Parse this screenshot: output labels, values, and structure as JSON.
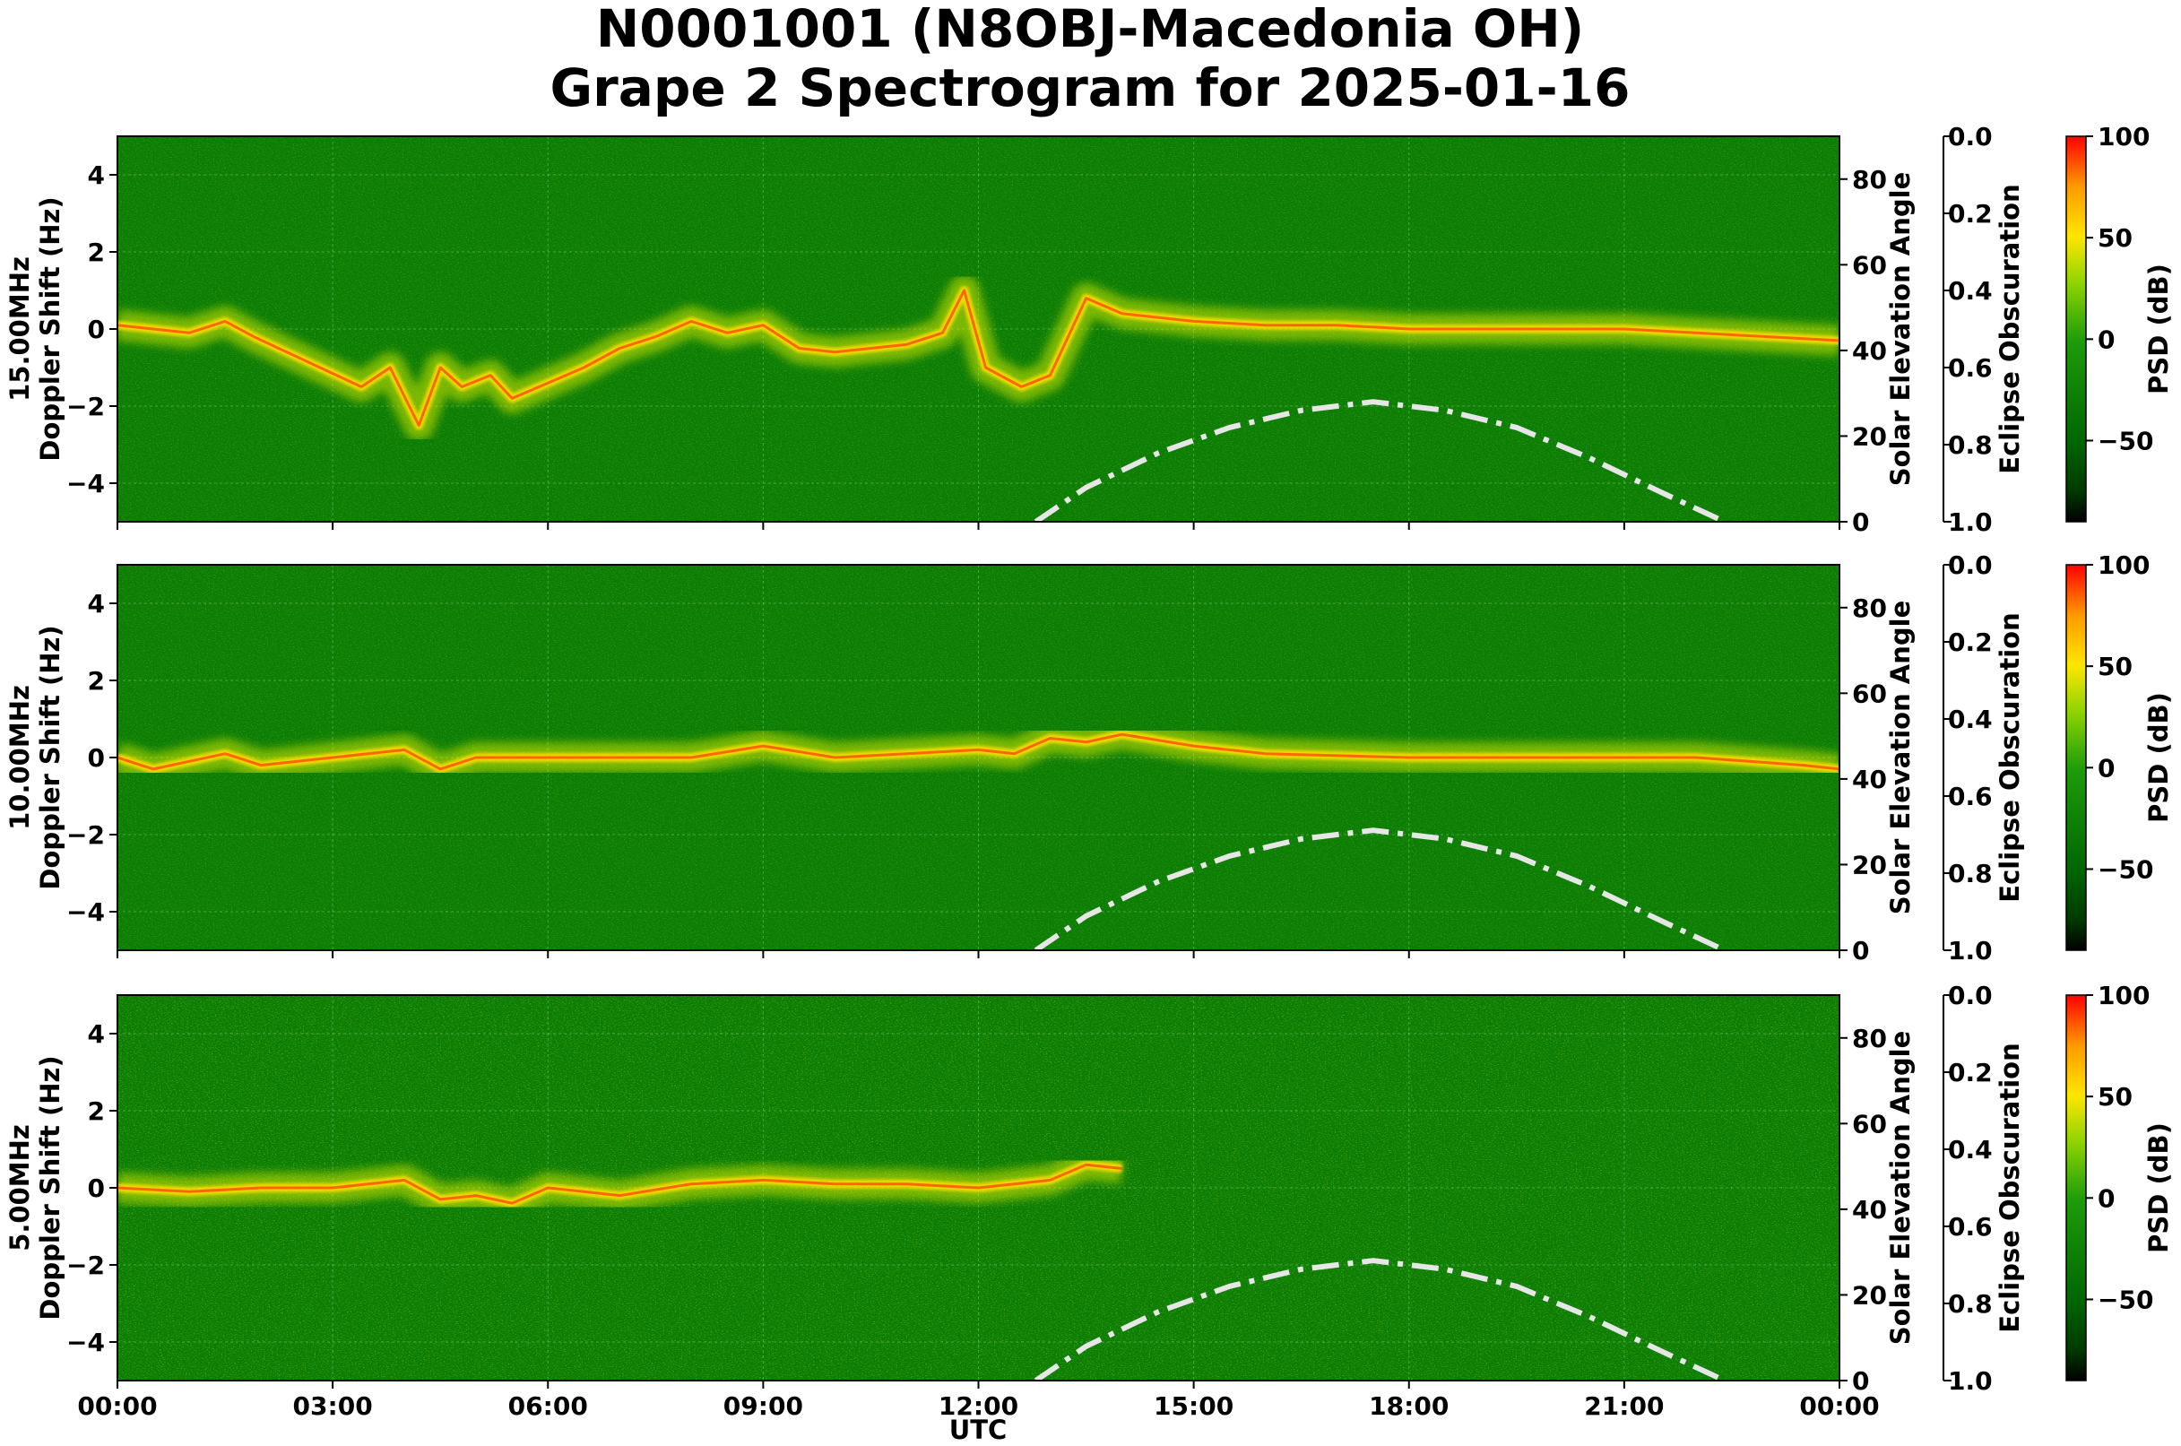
{
  "title_line1": "N0001001 (N8OBJ-Macedonia OH)",
  "title_line2": "Grape 2 Spectrogram for 2025-01-16",
  "colors": {
    "spectrogram_background": "#0b7d05",
    "sun_curve": "#e6e6e6",
    "colorbar_stops": [
      "#000000",
      "#006400",
      "#1e9c0a",
      "#c8f000",
      "#ffe600",
      "#ff8000",
      "#ff0000"
    ]
  },
  "chart_data": {
    "type": "heatmap",
    "x_axis": {
      "label": "UTC",
      "range_hours": [
        0,
        24
      ],
      "tick_labels": [
        "00:00",
        "03:00",
        "06:00",
        "09:00",
        "12:00",
        "15:00",
        "18:00",
        "21:00",
        "00:00"
      ]
    },
    "panels": [
      {
        "frequency_label": "15.00MHz",
        "ylabel_line2": "Doppler Shift (Hz)",
        "ylim": [
          -5,
          5
        ],
        "yticks": [
          "4",
          "2",
          "0",
          "−2",
          "−4"
        ],
        "carrier_trace": {
          "x_hours": [
            0.0,
            0.5,
            1.0,
            1.5,
            1.9,
            3.4,
            3.8,
            4.2,
            4.5,
            4.8,
            5.2,
            5.5,
            6.5,
            7.0,
            7.5,
            8.0,
            8.5,
            9.0,
            9.5,
            10.0,
            10.5,
            11.0,
            11.5,
            11.8,
            12.1,
            12.6,
            13.0,
            13.5,
            14.0,
            14.5,
            15.0,
            16.0,
            17.0,
            18.0,
            19.0,
            20.0,
            21.0,
            22.0,
            23.0,
            24.0
          ],
          "doppler_hz": [
            0.1,
            0.0,
            -0.1,
            0.2,
            -0.2,
            -1.5,
            -1.0,
            -2.5,
            -1.0,
            -1.5,
            -1.2,
            -1.8,
            -1.0,
            -0.5,
            -0.2,
            0.2,
            -0.1,
            0.1,
            -0.5,
            -0.6,
            -0.5,
            -0.4,
            -0.1,
            1.0,
            -1.0,
            -1.5,
            -1.2,
            0.8,
            0.4,
            0.3,
            0.2,
            0.1,
            0.1,
            0.0,
            0.0,
            0.0,
            0.0,
            -0.1,
            -0.2,
            -0.3
          ]
        }
      },
      {
        "frequency_label": "10.00MHz",
        "ylabel_line2": "Doppler Shift (Hz)",
        "ylim": [
          -5,
          5
        ],
        "yticks": [
          "4",
          "2",
          "0",
          "−2",
          "−4"
        ],
        "carrier_trace": {
          "x_hours": [
            0.0,
            0.5,
            1.0,
            1.5,
            2.0,
            3.0,
            4.0,
            4.5,
            5.0,
            6.0,
            7.0,
            8.0,
            9.0,
            10.0,
            11.0,
            12.0,
            12.5,
            13.0,
            13.5,
            14.0,
            15.0,
            16.0,
            18.0,
            20.0,
            22.0,
            23.5,
            24.0
          ],
          "doppler_hz": [
            0.0,
            -0.3,
            -0.1,
            0.1,
            -0.2,
            0.0,
            0.2,
            -0.3,
            0.0,
            0.0,
            0.0,
            0.0,
            0.3,
            0.0,
            0.1,
            0.2,
            0.1,
            0.5,
            0.4,
            0.6,
            0.3,
            0.1,
            0.0,
            0.0,
            0.0,
            -0.2,
            -0.3
          ]
        }
      },
      {
        "frequency_label": "5.00MHz",
        "ylabel_line2": "Doppler Shift (Hz)",
        "ylim": [
          -5,
          5
        ],
        "yticks": [
          "4",
          "2",
          "0",
          "−2",
          "−4"
        ],
        "carrier_trace": {
          "x_hours": [
            0.0,
            1.0,
            2.0,
            3.0,
            4.0,
            4.5,
            5.0,
            5.5,
            6.0,
            7.0,
            8.0,
            9.0,
            10.0,
            11.0,
            12.0,
            12.5,
            13.0,
            13.5,
            14.0
          ],
          "doppler_hz": [
            0.0,
            -0.1,
            0.0,
            0.0,
            0.2,
            -0.3,
            -0.2,
            -0.4,
            0.0,
            -0.2,
            0.1,
            0.2,
            0.1,
            0.1,
            0.0,
            0.1,
            0.2,
            0.6,
            0.5
          ]
        }
      }
    ],
    "solar_elevation": {
      "label": "Solar Elevation Angle",
      "ylim": [
        0,
        90
      ],
      "yticks": [
        "0",
        "20",
        "40",
        "60",
        "80"
      ],
      "x_hours": [
        12.8,
        13.5,
        14.5,
        15.5,
        16.5,
        17.5,
        18.5,
        19.5,
        20.5,
        21.5,
        22.4
      ],
      "elevation_deg": [
        0,
        8,
        16,
        22,
        26,
        28,
        26,
        22,
        15,
        7,
        0
      ]
    },
    "eclipse_obscuration": {
      "label": "Eclipse Obscuration",
      "ylim": [
        0.0,
        1.0
      ],
      "inverted": true,
      "yticks": [
        "0.0",
        "0.2",
        "0.4",
        "0.6",
        "0.8",
        "1.0"
      ]
    },
    "colorbar": {
      "label": "PSD (dB)",
      "range": [
        -90,
        100
      ],
      "ticks": [
        100,
        50,
        0,
        -50
      ],
      "tick_labels": [
        "100",
        "50",
        "0",
        "−50"
      ]
    }
  }
}
